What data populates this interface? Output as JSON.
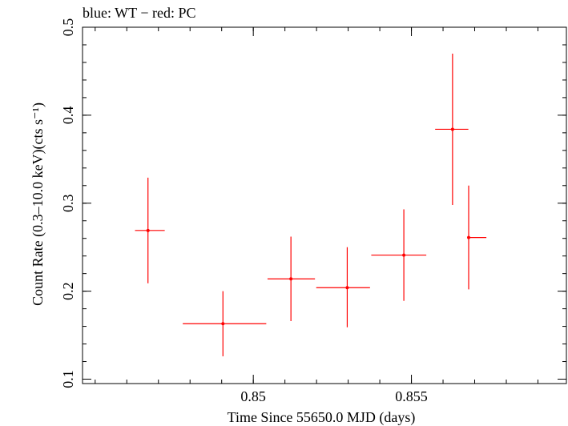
{
  "chart_data": {
    "type": "scatter",
    "title": "blue: WT − red: PC",
    "xlabel": "Time Since 55650.0 MJD (days)",
    "ylabel": "Count Rate (0.3–10.0 keV)(cts s⁻¹)",
    "xlim": [
      0.8446,
      0.8599
    ],
    "ylim": [
      0.095,
      0.5
    ],
    "x_ticks": [
      {
        "value": 0.85,
        "label": "0.85"
      },
      {
        "value": 0.855,
        "label": "0.855"
      }
    ],
    "x_minor_step": 0.001,
    "y_ticks": [
      {
        "value": 0.1,
        "label": "0.1"
      },
      {
        "value": 0.2,
        "label": "0.2"
      },
      {
        "value": 0.3,
        "label": "0.3"
      },
      {
        "value": 0.4,
        "label": "0.4"
      },
      {
        "value": 0.5,
        "label": "0.5"
      }
    ],
    "y_minor_step": 0.02,
    "grid": false,
    "legend": "none",
    "series": [
      {
        "color": "#ff0000",
        "points": [
          {
            "x": 0.84667,
            "x_lo": 0.84626,
            "x_hi": 0.8472,
            "y": 0.269,
            "y_lo": 0.209,
            "y_hi": 0.329
          },
          {
            "x": 0.84904,
            "x_lo": 0.84777,
            "x_hi": 0.85041,
            "y": 0.163,
            "y_lo": 0.126,
            "y_hi": 0.2
          },
          {
            "x": 0.85119,
            "x_lo": 0.85045,
            "x_hi": 0.85195,
            "y": 0.214,
            "y_lo": 0.166,
            "y_hi": 0.262
          },
          {
            "x": 0.85297,
            "x_lo": 0.85199,
            "x_hi": 0.85369,
            "y": 0.204,
            "y_lo": 0.159,
            "y_hi": 0.25
          },
          {
            "x": 0.85476,
            "x_lo": 0.85373,
            "x_hi": 0.85547,
            "y": 0.241,
            "y_lo": 0.189,
            "y_hi": 0.293
          },
          {
            "x": 0.8563,
            "x_lo": 0.85575,
            "x_hi": 0.8568,
            "y": 0.384,
            "y_lo": 0.298,
            "y_hi": 0.47
          },
          {
            "x": 0.85681,
            "x_lo": 0.85683,
            "x_hi": 0.85737,
            "y": 0.261,
            "y_lo": 0.202,
            "y_hi": 0.32
          }
        ]
      }
    ]
  }
}
